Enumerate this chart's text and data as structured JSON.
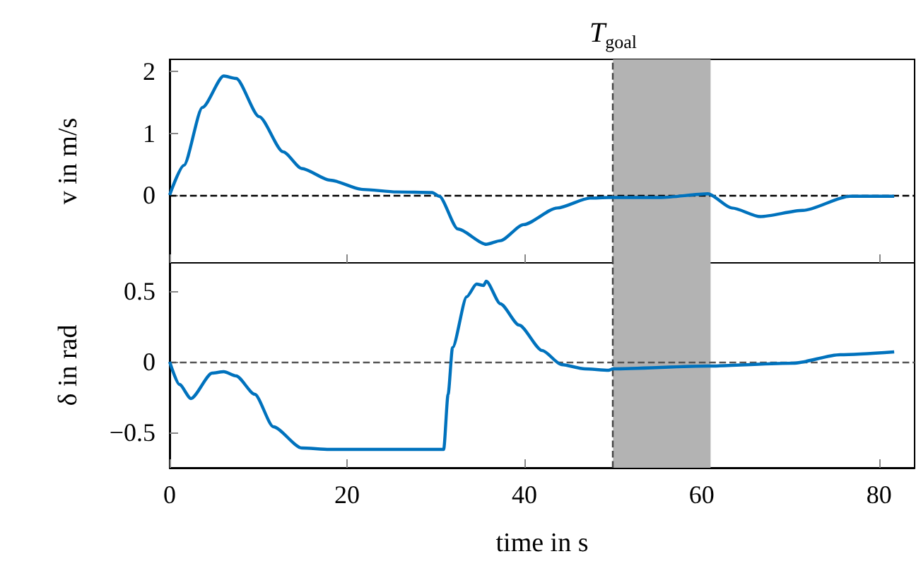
{
  "chart_data": [
    {
      "type": "line",
      "ylabel": "v in m/s",
      "tick_labels": "y",
      "grid": false,
      "marker": "none",
      "line_style": "solid",
      "x": [
        0,
        1.6,
        3.7,
        6.1,
        7.5,
        10.1,
        12.8,
        14.9,
        18.1,
        21.8,
        25.6,
        29.6,
        30.4,
        32.5,
        35.7,
        37.3,
        39.9,
        43.7,
        47.4,
        49.5,
        50.0,
        55.4,
        60.7,
        63.4,
        66.6,
        71.4,
        76.7,
        81.7
      ],
      "series": [
        {
          "color": "#0072bd",
          "values": [
            0,
            0.48,
            1.42,
            1.93,
            1.89,
            1.27,
            0.7,
            0.43,
            0.24,
            0.09,
            0.05,
            0.04,
            -0.02,
            -0.55,
            -0.8,
            -0.74,
            -0.48,
            -0.21,
            -0.05,
            -0.04,
            -0.04,
            -0.04,
            0.02,
            -0.21,
            -0.35,
            -0.25,
            -0.02,
            -0.02
          ]
        }
      ],
      "xlim": [
        0,
        84
      ],
      "xticks": [
        0,
        20,
        40,
        60,
        80
      ],
      "ylim": [
        -1.1,
        2.2
      ],
      "yticks": [
        0,
        1,
        2
      ],
      "ref_lines": [
        {
          "axis": "y",
          "value": 0,
          "color": "#000000",
          "line_style": "dashed"
        },
        {
          "axis": "x",
          "value": 50,
          "label": "T$_{goal}$",
          "color": "#444444",
          "line_style": "dashed"
        }
      ],
      "bands": [
        {
          "axis": "x",
          "from": 50,
          "to": 61,
          "color": "#b3b3b3"
        }
      ]
    },
    {
      "type": "line",
      "xlabel": "time in s",
      "ylabel": "δ in rad",
      "grid": false,
      "marker": "none",
      "line_style": "solid",
      "x": [
        0,
        1.1,
        2.4,
        4.8,
        6.1,
        7.5,
        9.6,
        11.7,
        14.9,
        18,
        30.9,
        31.4,
        31.9,
        33.5,
        34.6,
        35.4,
        35.7,
        37.3,
        39.4,
        42.0,
        44.2,
        46.8,
        49.5,
        50,
        60.7,
        70.3,
        75.6,
        81.7
      ],
      "series": [
        {
          "color": "#0072bd",
          "values": [
            0,
            -0.16,
            -0.26,
            -0.08,
            -0.07,
            -0.1,
            -0.23,
            -0.46,
            -0.61,
            -0.62,
            -0.62,
            -0.23,
            0.1,
            0.46,
            0.55,
            0.54,
            0.57,
            0.41,
            0.26,
            0.08,
            -0.02,
            -0.05,
            -0.06,
            -0.05,
            -0.03,
            -0.01,
            0.05,
            0.07
          ]
        }
      ],
      "xlim": [
        0,
        84
      ],
      "xticks": [
        0,
        20,
        40,
        60,
        80
      ],
      "ylim": [
        -0.75,
        0.7
      ],
      "yticks": [
        {
          "value": -0.5,
          "label": "−0.5"
        },
        0,
        0.5
      ],
      "ref_lines": [
        {
          "axis": "y",
          "value": 0,
          "color": "#555555",
          "line_style": "dashed"
        },
        {
          "axis": "x",
          "value": 50,
          "color": "#444444",
          "line_style": "dashed"
        }
      ],
      "bands": [
        {
          "axis": "x",
          "from": 50,
          "to": 61,
          "color": "#b3b3b3"
        }
      ]
    }
  ]
}
